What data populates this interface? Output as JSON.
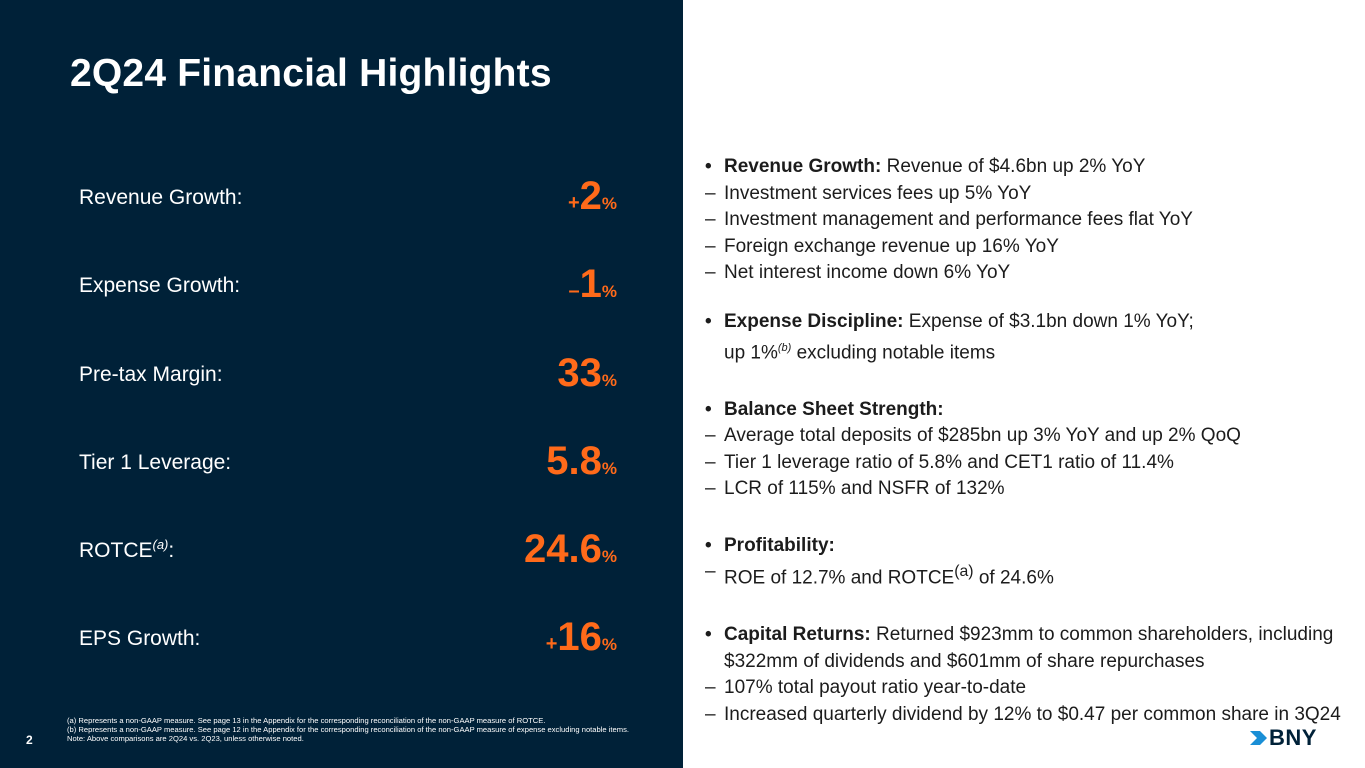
{
  "title": "2Q24 Financial Highlights",
  "metrics": [
    {
      "label": "Revenue Growth:",
      "sign": "+",
      "value": "2",
      "unit": "%"
    },
    {
      "label": "Expense Growth:",
      "sign": "–",
      "value": "1",
      "unit": "%"
    },
    {
      "label": "Pre-tax Margin:",
      "sign": "",
      "value": "33",
      "unit": "%"
    },
    {
      "label": "Tier 1 Leverage:",
      "sign": "",
      "value": "5.8",
      "unit": "%"
    },
    {
      "label": "ROTCE",
      "label_sup": "(a)",
      "label_suffix": ":",
      "sign": "",
      "value": "24.6",
      "unit": "%"
    },
    {
      "label": "EPS Growth:",
      "sign": "+",
      "value": "16",
      "unit": "%"
    }
  ],
  "bullets": {
    "revenue": {
      "heading": "Revenue Growth:",
      "text": " Revenue of $4.6bn up 2% YoY",
      "subs": [
        "Investment services fees up 5% YoY",
        "Investment management and performance fees flat YoY",
        "Foreign exchange revenue up 16% YoY",
        "Net interest income down 6% YoY"
      ]
    },
    "expense": {
      "heading": "Expense Discipline:",
      "text": " Expense of $3.1bn down 1% YoY;",
      "line2_pre": "up 1%",
      "line2_sup": "(b)",
      "line2_post": " excluding notable items"
    },
    "balance": {
      "heading": "Balance Sheet Strength:",
      "subs": [
        "Average total deposits of $285bn up 3% YoY and up 2% QoQ",
        "Tier 1 leverage ratio of 5.8% and CET1 ratio of 11.4%",
        "LCR of 115% and NSFR of 132%"
      ]
    },
    "profitability": {
      "heading": "Profitability:",
      "sub_pre": "ROE of 12.7% and ROTCE",
      "sub_sup": "(a)",
      "sub_post": " of 24.6%"
    },
    "capital": {
      "heading": "Capital Returns:",
      "text": " Returned $923mm to common shareholders, including $322mm of dividends and $601mm of share repurchases",
      "subs": [
        "107% total payout ratio year-to-date",
        "Increased quarterly dividend by 12% to $0.47 per common share in 3Q24"
      ]
    }
  },
  "bullet_symbol": "•",
  "dash_symbol": "–",
  "footnotes": [
    "(a) Represents a non-GAAP measure. See page 13 in the Appendix for the corresponding reconciliation of the non-GAAP measure of ROTCE.",
    "(b) Represents a non-GAAP measure. See page 12 in the Appendix for the corresponding reconciliation of the non-GAAP measure of expense excluding notable items.",
    "Note: Above comparisons are 2Q24 vs. 2Q23, unless otherwise noted."
  ],
  "page_number": "2",
  "logo_text": "BNY",
  "colors": {
    "navy": "#002138",
    "accent": "#ff6a1a",
    "text": "#1c1c1c"
  }
}
